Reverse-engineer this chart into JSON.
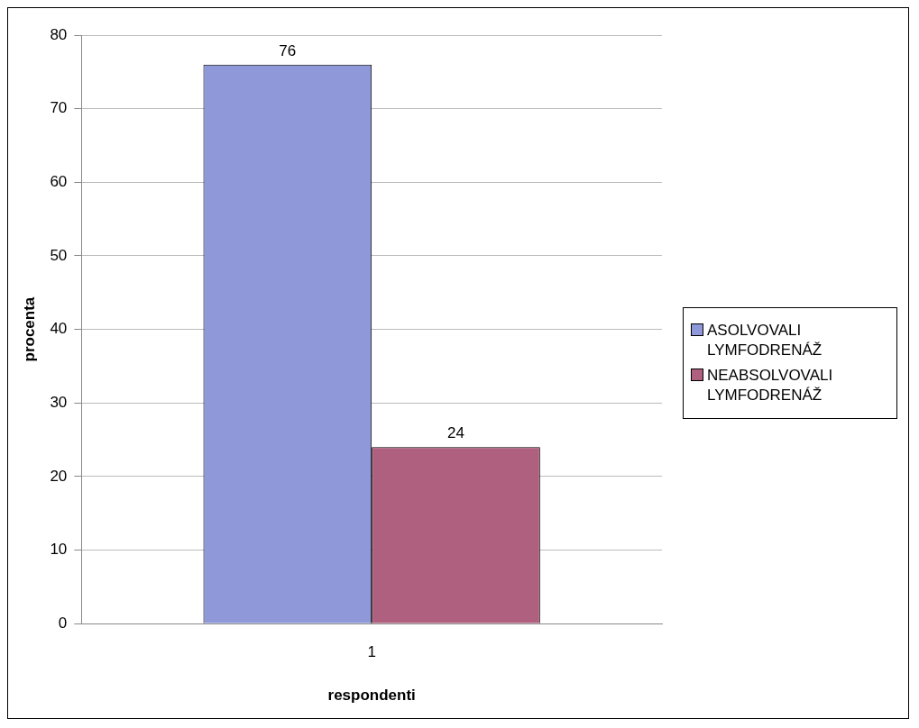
{
  "chart_data": {
    "type": "bar",
    "xlabel": "respondenti",
    "ylabel": "procenta",
    "categories": [
      "1"
    ],
    "series": [
      {
        "name": "ASOLVOVALI LYMFODRENÁŽ",
        "color": "#8f99d9",
        "values": [
          76
        ]
      },
      {
        "name": "NEABSOLVOVALI LYMFODRENÁŽ",
        "color": "#b0607f",
        "values": [
          24
        ]
      }
    ],
    "ylim": [
      0,
      80
    ],
    "yticks": [
      0,
      10,
      20,
      30,
      40,
      50,
      60,
      70,
      80
    ],
    "grid": "y",
    "legend": "right",
    "data_labels": true
  }
}
